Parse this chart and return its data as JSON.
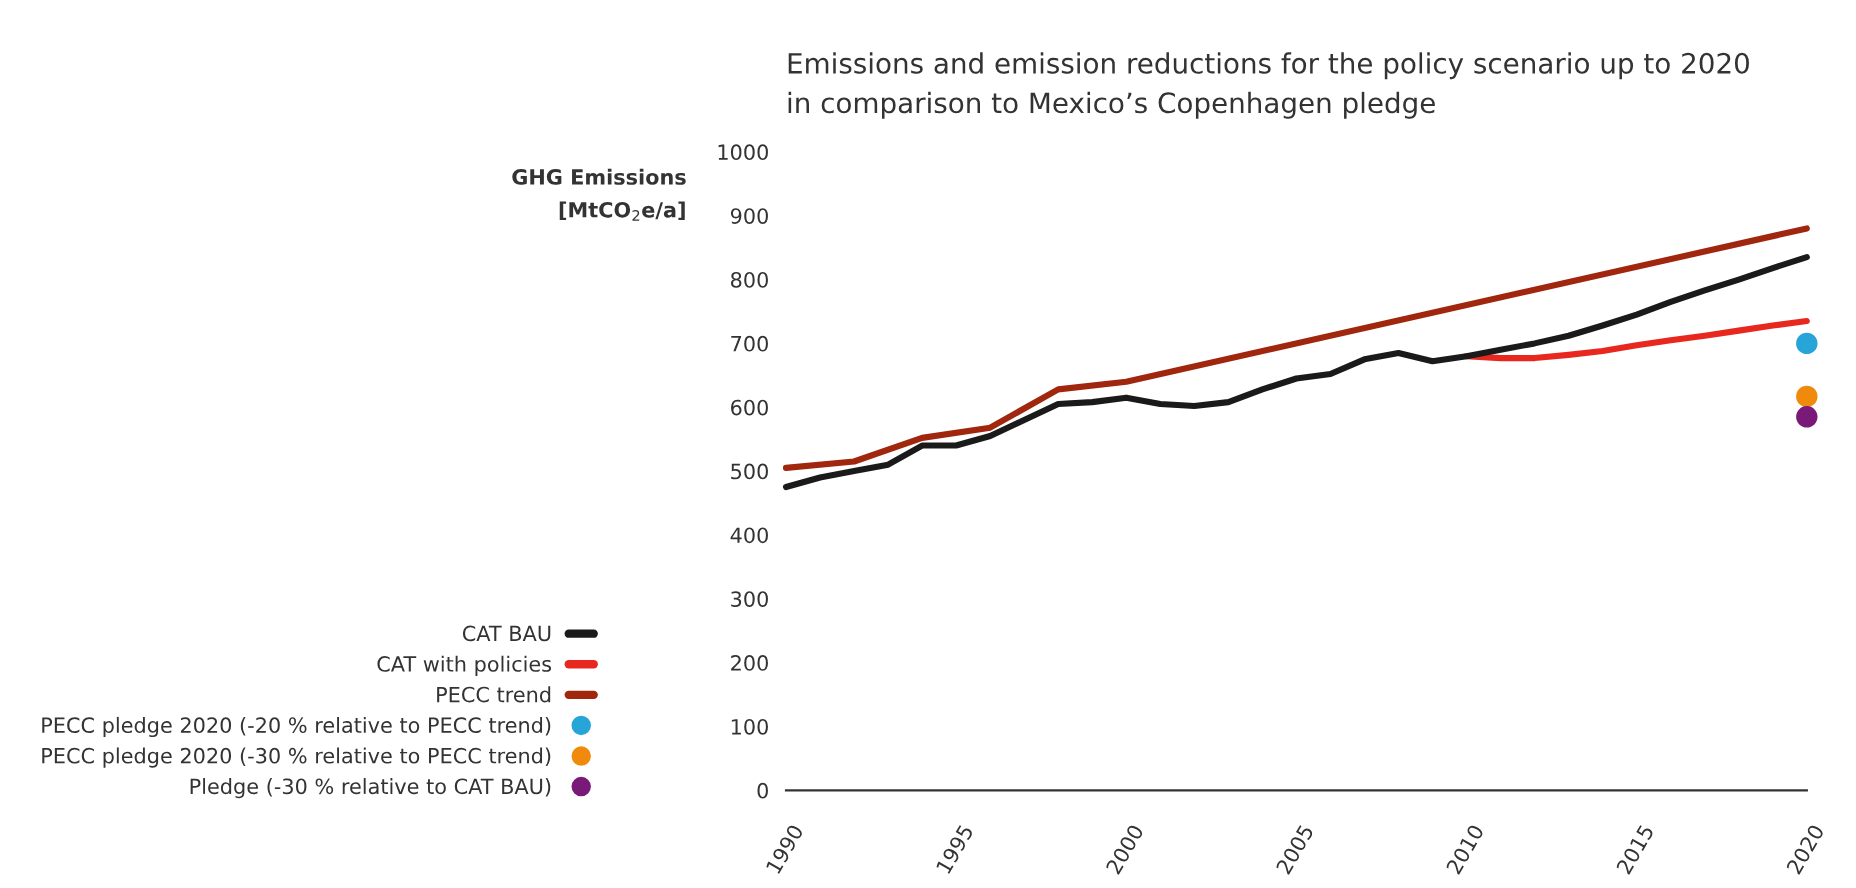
{
  "chart_data": {
    "type": "line",
    "title": "Emissions and emission reductions for the policy scenario up to 2020\nin comparison to Mexico’s Copenhagen pledge",
    "ylabel": "GHG Emissions\n[MtCO$_{2}$e/a]",
    "xlim": [
      1990,
      2020
    ],
    "xticks": [
      1990,
      1995,
      2000,
      2005,
      2010,
      2015,
      2020
    ],
    "ylim": [
      0,
      1000
    ],
    "yticks": [
      0,
      100,
      200,
      300,
      400,
      500,
      600,
      700,
      800,
      900,
      1000
    ],
    "grid": false,
    "legend": "left",
    "line_style": "solid",
    "series": [
      {
        "name": "CAT BAU",
        "color": "#1a1a1a",
        "x": [
          1990,
          1991,
          1992,
          1993,
          1994,
          1995,
          1996,
          1997,
          1998,
          1999,
          2000,
          2001,
          2002,
          2003,
          2004,
          2005,
          2006,
          2007,
          2008,
          2009,
          2010,
          2011,
          2012,
          2013,
          2014,
          2015,
          2016,
          2017,
          2018,
          2019,
          2020
        ],
        "values": [
          475,
          490,
          500,
          510,
          540,
          540,
          555,
          580,
          605,
          608,
          615,
          605,
          602,
          608,
          628,
          645,
          652,
          675,
          685,
          672,
          680,
          690,
          700,
          712,
          728,
          745,
          765,
          783,
          800,
          818,
          835
        ]
      },
      {
        "name": "CAT with policies",
        "color": "#e8281e",
        "x": [
          2010,
          2011,
          2012,
          2013,
          2014,
          2015,
          2016,
          2017,
          2018,
          2019,
          2020
        ],
        "values": [
          680,
          677,
          677,
          682,
          688,
          697,
          705,
          712,
          720,
          728,
          735
        ]
      },
      {
        "name": "PECC trend",
        "color": "#a0260e",
        "x": [
          1990,
          1992,
          1994,
          1996,
          1998,
          2000,
          2020
        ],
        "values": [
          505,
          515,
          552,
          568,
          628,
          640,
          880
        ]
      },
      {
        "name": "PECC pledge 2020 (-20 % relative to PECC trend)",
        "type": "scatter",
        "marker": "circle",
        "color": "#27a4d8",
        "x": [
          2020
        ],
        "values": [
          700
        ]
      },
      {
        "name": "PECC pledge 2020 (-30 % relative to PECC trend)",
        "type": "scatter",
        "marker": "circle",
        "color": "#f08a0c",
        "x": [
          2020
        ],
        "values": [
          617
        ]
      },
      {
        "name": "Pledge (-30 % relative to CAT BAU)",
        "type": "scatter",
        "marker": "circle",
        "color": "#7a1a78",
        "x": [
          2020
        ],
        "values": [
          585
        ]
      }
    ]
  }
}
